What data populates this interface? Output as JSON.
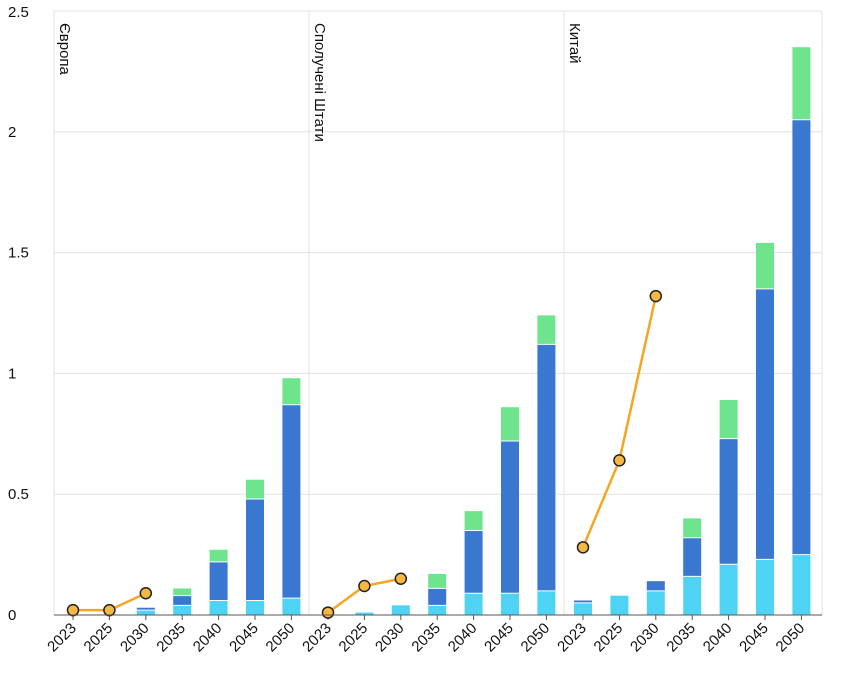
{
  "chart_data": {
    "type": "bar",
    "y_axis": {
      "ylim": [
        0,
        2.5
      ],
      "ticks": [
        0,
        0.5,
        1,
        1.5,
        2,
        2.5
      ],
      "tick_labels": [
        "0",
        "0.5",
        "1",
        "1.5",
        "2",
        "2.5"
      ]
    },
    "grid": true,
    "stacked": true,
    "colors": {
      "series_1": "#4fd3f5",
      "series_2": "#3a77d1",
      "series_3": "#6ee58d",
      "line": "#f5a623",
      "marker_fill": "#f5b942",
      "marker_edge": "#222222",
      "grid": "#e3e3e3"
    },
    "panels": [
      {
        "label": "Європа",
        "categories": [
          "2023",
          "2025",
          "2030",
          "2035",
          "2040",
          "2045",
          "2050"
        ],
        "series": [
          {
            "values": [
              0,
              0,
              0.02,
              0.04,
              0.06,
              0.06,
              0.07
            ]
          },
          {
            "values": [
              0,
              0,
              0.01,
              0.04,
              0.16,
              0.42,
              0.8
            ]
          },
          {
            "values": [
              0,
              0,
              0,
              0.03,
              0.05,
              0.08,
              0.11
            ]
          }
        ],
        "line": [
          {
            "category": "2023",
            "value": 0.02
          },
          {
            "category": "2025",
            "value": 0.02
          },
          {
            "category": "2030",
            "value": 0.09
          }
        ]
      },
      {
        "label": "Сполучені Штати",
        "categories": [
          "2023",
          "2025",
          "2030",
          "2035",
          "2040",
          "2045",
          "2050"
        ],
        "series": [
          {
            "values": [
              0,
              0.01,
              0.04,
              0.04,
              0.09,
              0.09,
              0.1
            ]
          },
          {
            "values": [
              0,
              0,
              0,
              0.07,
              0.26,
              0.63,
              1.02
            ]
          },
          {
            "values": [
              0,
              0,
              0,
              0.06,
              0.08,
              0.14,
              0.12
            ]
          }
        ],
        "line": [
          {
            "category": "2023",
            "value": 0.01
          },
          {
            "category": "2025",
            "value": 0.12
          },
          {
            "category": "2030",
            "value": 0.15
          }
        ]
      },
      {
        "label": "Китай",
        "categories": [
          "2023",
          "2025",
          "2030",
          "2035",
          "2040",
          "2045",
          "2050"
        ],
        "series": [
          {
            "values": [
              0.05,
              0.08,
              0.1,
              0.16,
              0.21,
              0.23,
              0.25
            ]
          },
          {
            "values": [
              0.01,
              0,
              0.04,
              0.16,
              0.52,
              1.12,
              1.8
            ]
          },
          {
            "values": [
              0,
              0,
              0,
              0.08,
              0.16,
              0.19,
              0.3
            ]
          }
        ],
        "line": [
          {
            "category": "2023",
            "value": 0.28
          },
          {
            "category": "2025",
            "value": 0.64
          },
          {
            "category": "2030",
            "value": 1.32
          }
        ]
      }
    ]
  }
}
